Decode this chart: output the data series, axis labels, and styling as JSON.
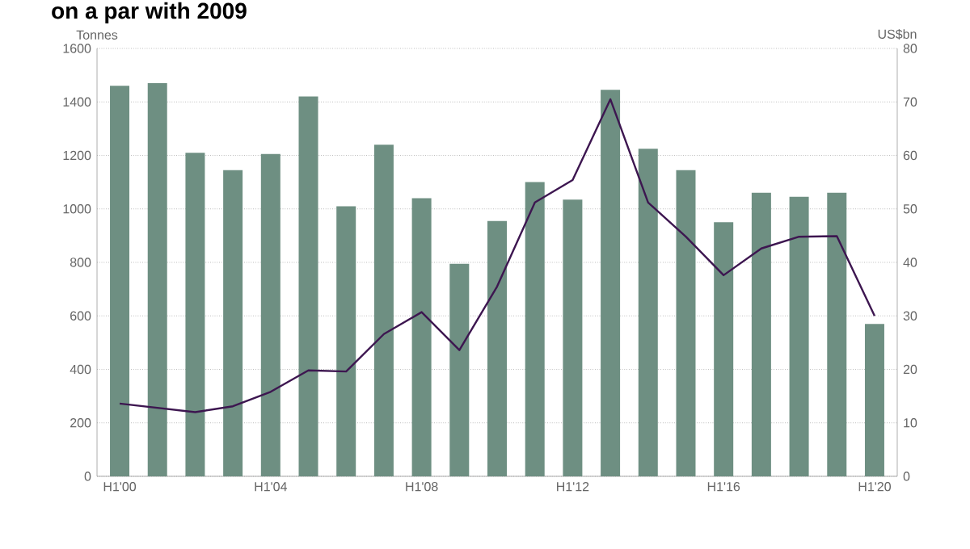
{
  "chart_data": {
    "type": "bar",
    "title": "on a par with 2009",
    "ylabel": "Tonnes",
    "y2label": "US$bn",
    "categories": [
      "H1'00",
      null,
      null,
      null,
      "H1'04",
      null,
      null,
      null,
      "H1'08",
      null,
      null,
      null,
      "H1'12",
      null,
      null,
      null,
      "H1'16",
      null,
      null,
      null,
      "H1'20"
    ],
    "series": [
      {
        "color": "#6e8f82",
        "values": [
          1460,
          1470,
          1210,
          1145,
          1205,
          1420,
          1010,
          1240,
          1040,
          795,
          955,
          1100,
          1035,
          1445,
          1225,
          1145,
          950,
          1060,
          1045,
          1060,
          570
        ]
      },
      {
        "type": "line",
        "axis": "y2",
        "color": "#3d1650",
        "values": [
          13.6,
          12.8,
          12.0,
          13.1,
          15.8,
          19.8,
          19.6,
          26.6,
          30.7,
          23.6,
          35.5,
          51.2,
          55.4,
          70.5,
          51.2,
          44.8,
          37.6,
          42.6,
          44.8,
          44.9,
          30.0
        ]
      }
    ],
    "ylim": [
      0,
      1600
    ],
    "yticks": [
      0,
      200,
      400,
      600,
      800,
      1000,
      1200,
      1400,
      1600
    ],
    "y2lim": [
      0,
      80
    ],
    "y2ticks": [
      0,
      10,
      20,
      30,
      40,
      50,
      60,
      70,
      80
    ],
    "grid": "y"
  }
}
